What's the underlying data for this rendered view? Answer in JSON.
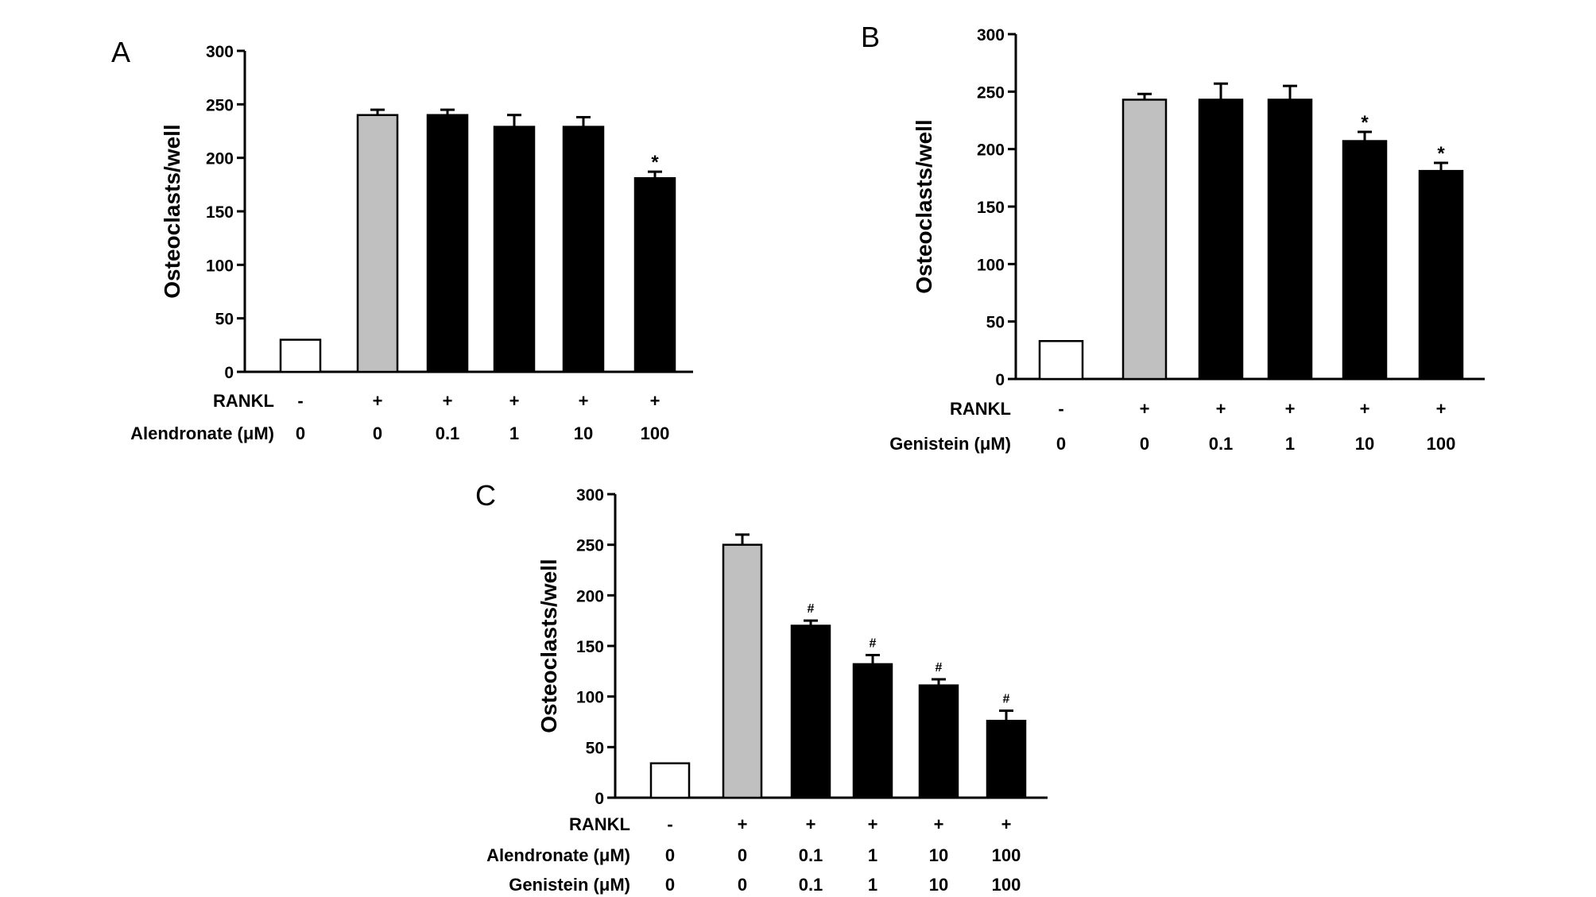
{
  "chart_data": [
    {
      "panel": "A",
      "type": "bar",
      "title": "",
      "ylabel": "Osteoclasts/well",
      "ylim": [
        0,
        300
      ],
      "yticks": [
        0,
        50,
        100,
        150,
        200,
        250,
        300
      ],
      "values": [
        30,
        240,
        240,
        229,
        229,
        181
      ],
      "errors": [
        0,
        5,
        5,
        11,
        9,
        6
      ],
      "fills": [
        "white",
        "gray",
        "black",
        "black",
        "black",
        "black"
      ],
      "annotations": [
        "",
        "",
        "",
        "",
        "",
        "*"
      ],
      "rows": [
        {
          "label": "RANKL",
          "cells": [
            "-",
            "+",
            "+",
            "+",
            "+",
            "+"
          ]
        },
        {
          "label": "Alendronate (μM)",
          "cells": [
            "0",
            "0",
            "0.1",
            "1",
            "10",
            "100"
          ]
        }
      ]
    },
    {
      "panel": "B",
      "type": "bar",
      "title": "",
      "ylabel": "Osteoclasts/well",
      "ylim": [
        0,
        300
      ],
      "yticks": [
        0,
        50,
        100,
        150,
        200,
        250,
        300
      ],
      "values": [
        33,
        243,
        243,
        243,
        207,
        181
      ],
      "errors": [
        0,
        5,
        14,
        12,
        8,
        7
      ],
      "fills": [
        "white",
        "gray",
        "black",
        "black",
        "black",
        "black"
      ],
      "annotations": [
        "",
        "",
        "",
        "",
        "*",
        "*"
      ],
      "rows": [
        {
          "label": "RANKL",
          "cells": [
            "-",
            "+",
            "+",
            "+",
            "+",
            "+"
          ]
        },
        {
          "label": "Genistein (μM)",
          "cells": [
            "0",
            "0",
            "0.1",
            "1",
            "10",
            "100"
          ]
        }
      ]
    },
    {
      "panel": "C",
      "type": "bar",
      "title": "",
      "ylabel": "Osteoclasts/well",
      "ylim": [
        0,
        300
      ],
      "yticks": [
        0,
        50,
        100,
        150,
        200,
        250,
        300
      ],
      "values": [
        34,
        250,
        170,
        132,
        111,
        76
      ],
      "errors": [
        0,
        10,
        5,
        9,
        6,
        10
      ],
      "fills": [
        "white",
        "gray",
        "black",
        "black",
        "black",
        "black"
      ],
      "annotations": [
        "",
        "",
        "#",
        "#",
        "#",
        "#"
      ],
      "rows": [
        {
          "label": "RANKL",
          "cells": [
            "-",
            "+",
            "+",
            "+",
            "+",
            "+"
          ]
        },
        {
          "label": "Alendronate (μM)",
          "cells": [
            "0",
            "0",
            "0.1",
            "1",
            "10",
            "100"
          ]
        },
        {
          "label": "Genistein (μM)",
          "cells": [
            "0",
            "0",
            "0.1",
            "1",
            "10",
            "100"
          ]
        }
      ]
    }
  ],
  "colors": {
    "white_bar": "#ffffff",
    "gray_bar": "#c0c0c0",
    "black_bar": "#000000",
    "axis": "#000000"
  }
}
